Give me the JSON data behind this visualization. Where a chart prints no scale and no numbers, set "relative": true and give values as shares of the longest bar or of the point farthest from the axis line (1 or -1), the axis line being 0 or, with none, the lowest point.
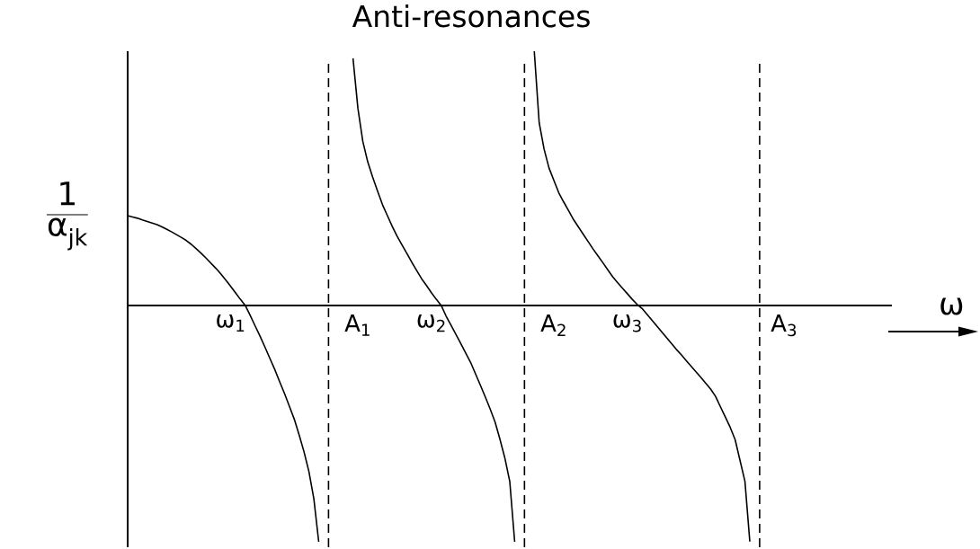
{
  "chart_data": {
    "type": "line",
    "title": "Anti-resonances",
    "xlabel": "ω",
    "ylabel": "\\frac{\\text{1}}{\\text{α}_{\\text{jk}}}",
    "relative": true,
    "categories": [
      null,
      null,
      null,
      null,
      null,
      null,
      null,
      null,
      null,
      null,
      null,
      null,
      null,
      null,
      null,
      null,
      null,
      null,
      null,
      null,
      null,
      "ω$_{1}$",
      null,
      null,
      null,
      null,
      null,
      null,
      null,
      null,
      null,
      null,
      null,
      null,
      null,
      null,
      null,
      null,
      null,
      null,
      null,
      null,
      null,
      null,
      null,
      null,
      null,
      "A$_{1}$",
      null,
      null,
      null,
      null,
      null,
      null,
      null,
      null,
      null,
      null,
      null,
      null,
      null,
      null,
      "ω$_{2}$",
      null,
      null,
      null,
      null,
      null,
      null,
      null,
      null,
      null,
      null,
      null,
      null,
      null,
      null,
      null,
      null,
      null,
      null,
      null,
      null,
      null,
      null,
      null,
      null,
      "A$_{2}$",
      null,
      null,
      null,
      null,
      null,
      null,
      null,
      null,
      null,
      null,
      null,
      null,
      null,
      null,
      "ω$_{3}$",
      null,
      null,
      null,
      null,
      null,
      null,
      null,
      null,
      null,
      null,
      null,
      null,
      null,
      null,
      null,
      null,
      null,
      null,
      null,
      null,
      null,
      null,
      null,
      null,
      null,
      null,
      null,
      null,
      null,
      null,
      null,
      "A$_{3}$",
      null,
      null,
      null,
      null,
      null,
      null,
      null,
      null,
      null,
      null,
      null,
      null,
      null,
      null,
      null,
      null,
      null,
      null,
      null,
      null,
      null,
      null
    ],
    "series": [
      {
        "color": "#000000",
        "values": [
          0.353,
          0.348,
          0.343,
          0.336,
          0.33,
          0.324,
          0.318,
          0.309,
          0.299,
          0.289,
          0.278,
          0.267,
          0.255,
          0.24,
          0.223,
          0.205,
          0.186,
          0.166,
          0.146,
          0.124,
          0.1,
          0.076,
          0.05,
          0.024,
          0,
          -0.039,
          -0.08,
          -0.12,
          -0.163,
          -0.207,
          -0.251,
          -0.299,
          -0.346,
          -0.396,
          -0.447,
          -0.509,
          -0.576,
          -0.654,
          -0.76,
          -0.93,
          null,
          null,
          null,
          null,
          null,
          null,
          null,
          null,
          null,
          null,
          null,
          null,
          null,
          null,
          null,
          null,
          null,
          null,
          null,
          null,
          null,
          null,
          null,
          null,
          null,
          null,
          null,
          null,
          null,
          null,
          null,
          null,
          null,
          null,
          null,
          null,
          null,
          null,
          null,
          null,
          null,
          null,
          null,
          null,
          null,
          null,
          null,
          null,
          null,
          null,
          null,
          null,
          null,
          null,
          null,
          null,
          null,
          null,
          null,
          null,
          null,
          null,
          null,
          null,
          null,
          null,
          null,
          null,
          null,
          null,
          null,
          null,
          null,
          null,
          null,
          null,
          null,
          null,
          null,
          null,
          null,
          null,
          null,
          null,
          null,
          null,
          null,
          null,
          null,
          null,
          null,
          null,
          null,
          null,
          null,
          null,
          null,
          null,
          null,
          null,
          null,
          null,
          null,
          null,
          null,
          null,
          null,
          null,
          null,
          null,
          null,
          null,
          null,
          null,
          null,
          null,
          null
        ]
      },
      {
        "color": "#000000",
        "values": [
          null,
          null,
          null,
          null,
          null,
          null,
          null,
          null,
          null,
          null,
          null,
          null,
          null,
          null,
          null,
          null,
          null,
          null,
          null,
          null,
          null,
          null,
          null,
          null,
          null,
          null,
          null,
          null,
          null,
          null,
          null,
          null,
          null,
          null,
          null,
          null,
          null,
          null,
          null,
          null,
          null,
          null,
          null,
          null,
          null,
          null,
          0.972,
          0.775,
          0.645,
          0.565,
          0.505,
          0.45,
          0.397,
          0.354,
          0.311,
          0.272,
          0.238,
          0.204,
          0.17,
          0.137,
          0.105,
          0.078,
          0.05,
          0.024,
          0,
          -0.042,
          -0.078,
          -0.114,
          -0.15,
          -0.187,
          -0.224,
          -0.269,
          -0.314,
          -0.36,
          -0.408,
          -0.459,
          -0.527,
          -0.601,
          -0.693,
          -0.93,
          null,
          null,
          null,
          null,
          null,
          null,
          null,
          null,
          null,
          null,
          null,
          null,
          null,
          null,
          null,
          null,
          null,
          null,
          null,
          null,
          null,
          null,
          null,
          null,
          null,
          null,
          null,
          null,
          null,
          null,
          null,
          null,
          null,
          null,
          null,
          null,
          null,
          null,
          null,
          null,
          null,
          null,
          null,
          null,
          null,
          null,
          null,
          null,
          null,
          null,
          null,
          null,
          null,
          null,
          null,
          null,
          null,
          null,
          null,
          null,
          null,
          null,
          null,
          null,
          null,
          null,
          null,
          null,
          null,
          null,
          null,
          null,
          null,
          null,
          null,
          null,
          null
        ]
      },
      {
        "color": "#000000",
        "values": [
          null,
          null,
          null,
          null,
          null,
          null,
          null,
          null,
          null,
          null,
          null,
          null,
          null,
          null,
          null,
          null,
          null,
          null,
          null,
          null,
          null,
          null,
          null,
          null,
          null,
          null,
          null,
          null,
          null,
          null,
          null,
          null,
          null,
          null,
          null,
          null,
          null,
          null,
          null,
          null,
          null,
          null,
          null,
          null,
          null,
          null,
          null,
          null,
          null,
          null,
          null,
          null,
          null,
          null,
          null,
          null,
          null,
          null,
          null,
          null,
          null,
          null,
          null,
          null,
          null,
          null,
          null,
          null,
          null,
          null,
          null,
          null,
          null,
          null,
          null,
          null,
          null,
          null,
          null,
          null,
          null,
          null,
          null,
          1.0,
          0.719,
          0.615,
          0.541,
          0.492,
          0.443,
          0.407,
          0.373,
          0.338,
          0.309,
          0.28,
          0.251,
          0.222,
          0.195,
          0.168,
          0.14,
          0.113,
          0.09,
          0.068,
          0.046,
          0.024,
          0.004,
          -0.012,
          -0.035,
          -0.058,
          -0.081,
          -0.104,
          -0.127,
          -0.15,
          -0.173,
          -0.194,
          -0.217,
          -0.239,
          -0.261,
          -0.283,
          -0.306,
          -0.329,
          -0.358,
          -0.399,
          -0.439,
          -0.48,
          -0.528,
          -0.61,
          -0.692,
          -0.929,
          null,
          null,
          null,
          null,
          null,
          null,
          null,
          null,
          null,
          null,
          null,
          null,
          null,
          null,
          null,
          null,
          null,
          null,
          null,
          null,
          null,
          null,
          null,
          null,
          null,
          null,
          null,
          null,
          null
        ]
      }
    ]
  }
}
